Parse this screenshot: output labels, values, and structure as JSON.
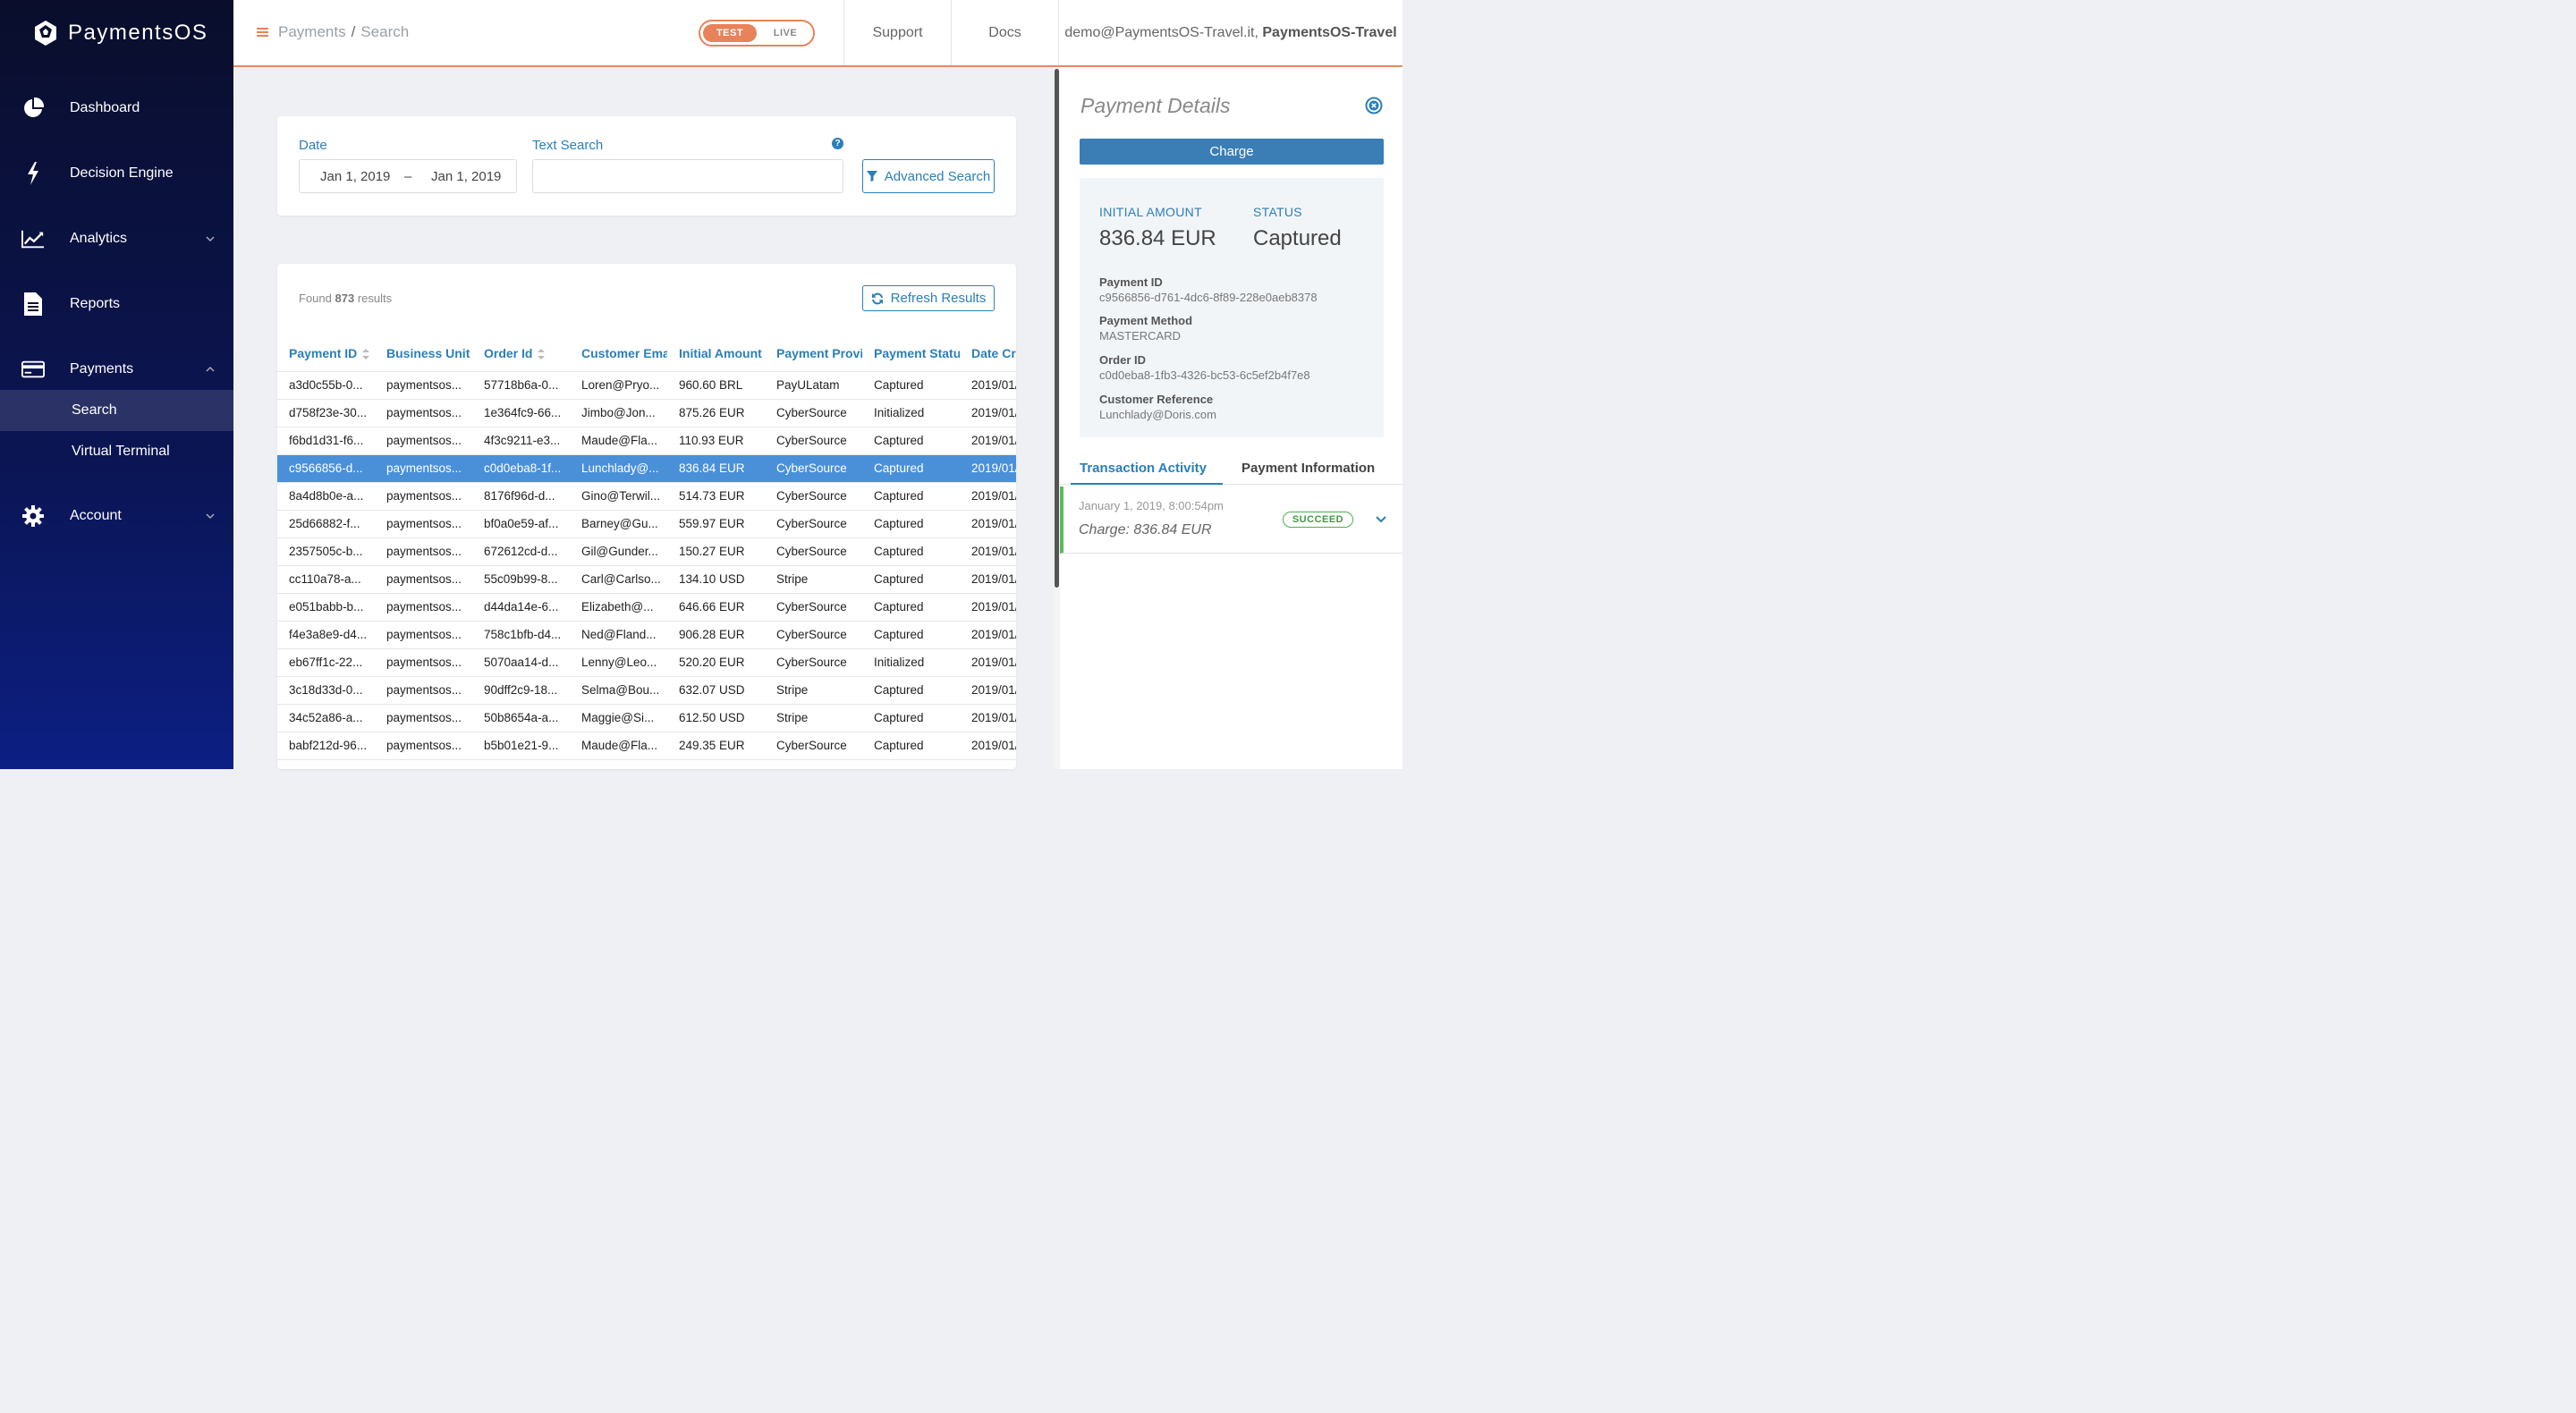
{
  "app": {
    "name": "PaymentsOS"
  },
  "colors": {
    "accent": "#2a7fb8",
    "brand_orange": "#e8825a",
    "selected_row": "#4a90d9",
    "success": "#4caf50"
  },
  "sidebar": {
    "items": [
      {
        "label": "Dashboard",
        "icon": "pie-chart-icon"
      },
      {
        "label": "Decision Engine",
        "icon": "lightning-icon"
      },
      {
        "label": "Analytics",
        "icon": "line-chart-icon"
      },
      {
        "label": "Reports",
        "icon": "document-icon"
      },
      {
        "label": "Payments",
        "icon": "credit-card-icon"
      },
      {
        "label": "Account",
        "icon": "gear-icon"
      }
    ],
    "sub_items": [
      {
        "label": "Search",
        "active": true
      },
      {
        "label": "Virtual Terminal",
        "active": false
      }
    ]
  },
  "header": {
    "breadcrumb": {
      "root": "Payments",
      "separator": "/",
      "current": "Search"
    },
    "env_toggle": {
      "test": "TEST",
      "live": "LIVE",
      "selected": "TEST"
    },
    "links": {
      "support": "Support",
      "docs": "Docs"
    },
    "user": {
      "email": "demo@PaymentsOS-Travel.it,",
      "account": "PaymentsOS-Travel"
    }
  },
  "search": {
    "date_label": "Date",
    "date_from": "Jan 1, 2019",
    "date_dash": "–",
    "date_to": "Jan 1, 2019",
    "text_label": "Text Search",
    "text_value": "",
    "help": "?",
    "advanced_button": "Advanced Search"
  },
  "results": {
    "found_prefix": "Found",
    "count": "873",
    "found_suffix": "results",
    "refresh_button": "Refresh Results",
    "columns": [
      "Payment ID",
      "Business Unit",
      "Order Id",
      "Customer Email",
      "Initial Amount",
      "Payment Provider",
      "Payment Status",
      "Date Created"
    ],
    "rows": [
      [
        "a3d0c55b-0...",
        "paymentsos...",
        "57718b6a-0...",
        "Loren@Pryo...",
        "960.60 BRL",
        "PayULatam",
        "Captured",
        "2019/01/"
      ],
      [
        "d758f23e-30...",
        "paymentsos...",
        "1e364fc9-66...",
        "Jimbo@Jon...",
        "875.26 EUR",
        "CyberSource",
        "Initialized",
        "2019/01/"
      ],
      [
        "f6bd1d31-f6...",
        "paymentsos...",
        "4f3c9211-e3...",
        "Maude@Fla...",
        "110.93 EUR",
        "CyberSource",
        "Captured",
        "2019/01/"
      ],
      [
        "c9566856-d...",
        "paymentsos...",
        "c0d0eba8-1f...",
        "Lunchlady@...",
        "836.84 EUR",
        "CyberSource",
        "Captured",
        "2019/01/"
      ],
      [
        "8a4d8b0e-a...",
        "paymentsos...",
        "8176f96d-d...",
        "Gino@Terwil...",
        "514.73 EUR",
        "CyberSource",
        "Captured",
        "2019/01/"
      ],
      [
        "25d66882-f...",
        "paymentsos...",
        "bf0a0e59-af...",
        "Barney@Gu...",
        "559.97 EUR",
        "CyberSource",
        "Captured",
        "2019/01/"
      ],
      [
        "2357505c-b...",
        "paymentsos...",
        "672612cd-d...",
        "Gil@Gunder...",
        "150.27 EUR",
        "CyberSource",
        "Captured",
        "2019/01/"
      ],
      [
        "cc110a78-a...",
        "paymentsos...",
        "55c09b99-8...",
        "Carl@Carlso...",
        "134.10 USD",
        "Stripe",
        "Captured",
        "2019/01/"
      ],
      [
        "e051babb-b...",
        "paymentsos...",
        "d44da14e-6...",
        "Elizabeth@...",
        "646.66 EUR",
        "CyberSource",
        "Captured",
        "2019/01/"
      ],
      [
        "f4e3a8e9-d4...",
        "paymentsos...",
        "758c1bfb-d4...",
        "Ned@Fland...",
        "906.28 EUR",
        "CyberSource",
        "Captured",
        "2019/01/"
      ],
      [
        "eb67ff1c-22...",
        "paymentsos...",
        "5070aa14-d...",
        "Lenny@Leo...",
        "520.20 EUR",
        "CyberSource",
        "Initialized",
        "2019/01/"
      ],
      [
        "3c18d33d-0...",
        "paymentsos...",
        "90dff2c9-18...",
        "Selma@Bou...",
        "632.07 USD",
        "Stripe",
        "Captured",
        "2019/01/"
      ],
      [
        "34c52a86-a...",
        "paymentsos...",
        "50b8654a-a...",
        "Maggie@Si...",
        "612.50 USD",
        "Stripe",
        "Captured",
        "2019/01/"
      ],
      [
        "babf212d-96...",
        "paymentsos...",
        "b5b01e21-9...",
        "Maude@Fla...",
        "249.35 EUR",
        "CyberSource",
        "Captured",
        "2019/01/"
      ]
    ],
    "selected_index": 3
  },
  "details": {
    "title": "Payment Details",
    "charge_button": "Charge",
    "initial_amount_label": "INITIAL AMOUNT",
    "initial_amount": "836.84 EUR",
    "status_label": "STATUS",
    "status": "Captured",
    "fields": [
      {
        "label": "Payment ID",
        "value": "c9566856-d761-4dc6-8f89-228e0aeb8378"
      },
      {
        "label": "Payment Method",
        "value": "MASTERCARD"
      },
      {
        "label": "Order ID",
        "value": "c0d0eba8-1fb3-4326-bc53-6c5ef2b4f7e8"
      },
      {
        "label": "Customer Reference",
        "value": "Lunchlady@Doris.com"
      }
    ],
    "tabs": [
      "Transaction Activity",
      "Payment Information"
    ],
    "activity": {
      "date": "January 1, 2019, 8:00:54pm",
      "description": "Charge: 836.84 EUR",
      "badge": "SUCCEED"
    }
  }
}
